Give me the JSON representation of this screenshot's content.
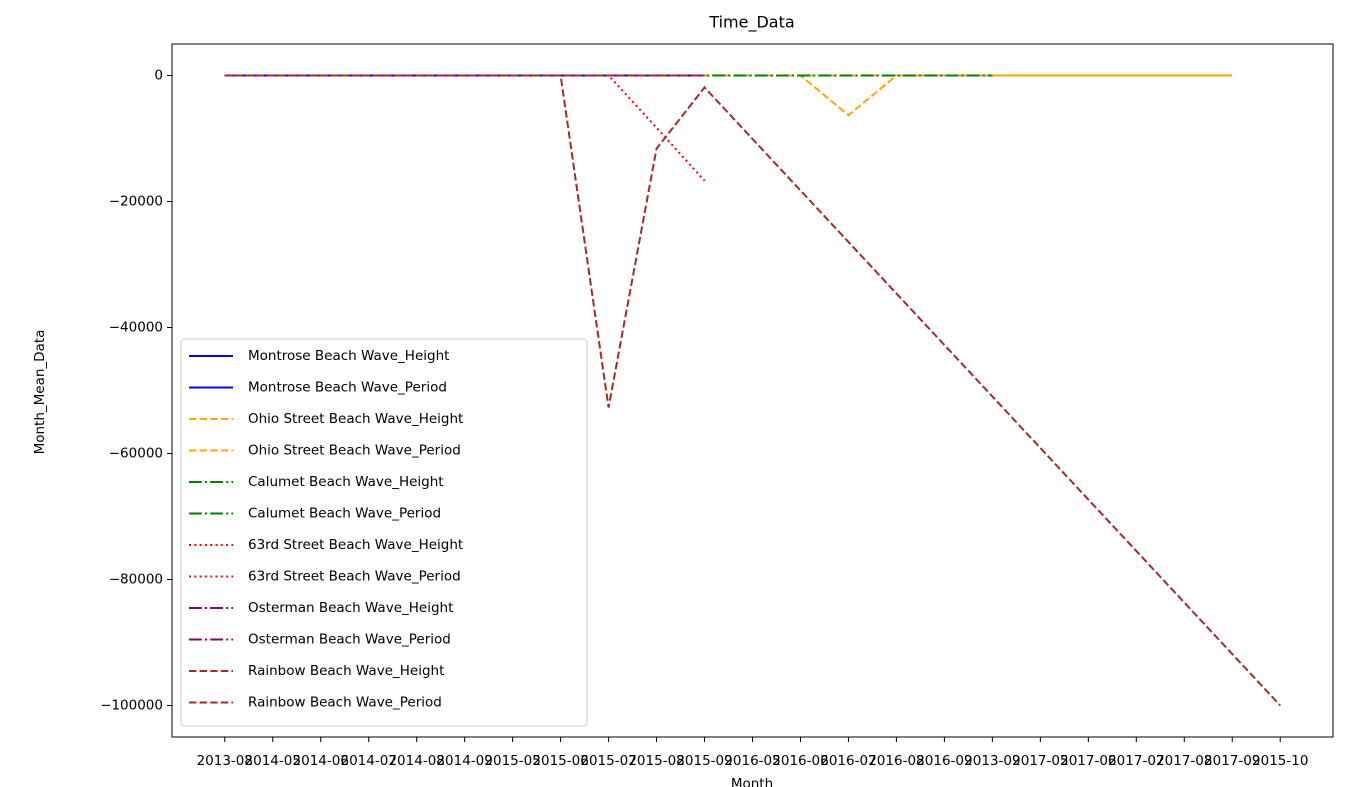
{
  "chart_data": {
    "type": "line",
    "title": "Time_Data",
    "x_label": "Month",
    "y_label": "Month_Mean_Data",
    "categories": [
      "2013-08",
      "2014-05",
      "2014-06",
      "2014-07",
      "2014-08",
      "2014-09",
      "2015-05",
      "2015-06",
      "2015-07",
      "2015-08",
      "2015-09",
      "2016-05",
      "2016-06",
      "2016-07",
      "2016-08",
      "2016-09",
      "2013-09",
      "2017-05",
      "2017-06",
      "2017-07",
      "2017-08",
      "2017-09",
      "2015-10"
    ],
    "ylim": [
      -105000,
      5000
    ],
    "yticks": [
      0,
      {
        "value": -20000,
        "label": "−20000"
      },
      {
        "value": -40000,
        "label": "−40000"
      },
      {
        "value": -60000,
        "label": "−60000"
      },
      {
        "value": -80000,
        "label": "−80000"
      },
      {
        "value": -100000,
        "label": "−100000"
      }
    ],
    "grid": false,
    "legend": "lower left",
    "series": [
      {
        "name": "Montrose Beach Wave_Height",
        "color": "#0000ff",
        "dash": "solid",
        "x": [
          "2013-08",
          "2014-05",
          "2014-06",
          "2014-07",
          "2014-08",
          "2014-09",
          "2015-05",
          "2015-06",
          "2015-07",
          "2015-08",
          "2015-09"
        ],
        "values": [
          1,
          1,
          1,
          1,
          1,
          1,
          1,
          1,
          1,
          1,
          1
        ]
      },
      {
        "name": "Montrose Beach Wave_Period",
        "color": "#0000ff",
        "dash": "solid",
        "x": [
          "2013-08",
          "2014-05",
          "2014-06",
          "2014-07",
          "2014-08",
          "2014-09",
          "2015-05",
          "2015-06",
          "2015-07",
          "2015-08",
          "2015-09"
        ],
        "values": [
          5,
          5,
          5,
          5,
          5,
          5,
          5,
          5,
          5,
          5,
          5
        ]
      },
      {
        "name": "Ohio Street Beach Wave_Height",
        "color": "#ffa500",
        "dash": "dashed",
        "x": [
          "2013-08",
          "2014-05",
          "2014-06",
          "2014-07",
          "2014-08",
          "2014-09",
          "2015-05",
          "2015-06",
          "2015-07",
          "2015-08",
          "2015-09",
          "2016-05",
          "2016-06",
          "2016-07",
          "2016-08",
          "2016-09",
          "2013-09",
          "2017-05",
          "2017-06",
          "2017-07",
          "2017-08",
          "2017-09"
        ],
        "values": [
          1,
          1,
          1,
          1,
          1,
          1,
          1,
          1,
          1,
          1,
          1,
          1,
          1,
          -6300,
          1,
          1,
          1,
          1,
          1,
          1,
          1,
          1
        ]
      },
      {
        "name": "Ohio Street Beach Wave_Period",
        "color": "#ffa500",
        "dash": "dashed",
        "x": [
          "2013-08",
          "2014-05",
          "2014-06",
          "2014-07",
          "2014-08",
          "2014-09",
          "2015-05",
          "2015-06",
          "2015-07",
          "2015-08",
          "2015-09",
          "2016-05",
          "2016-06",
          "2016-07",
          "2016-08",
          "2016-09",
          "2013-09",
          "2017-05",
          "2017-06",
          "2017-07",
          "2017-08",
          "2017-09"
        ],
        "values": [
          5,
          5,
          5,
          5,
          5,
          5,
          5,
          5,
          5,
          5,
          5,
          5,
          5,
          5,
          5,
          5,
          5,
          5,
          5,
          5,
          5,
          5
        ]
      },
      {
        "name": "Calumet Beach Wave_Height",
        "color": "#008000",
        "dash": "dashdot",
        "x": [
          "2013-08",
          "2014-05",
          "2014-06",
          "2014-07",
          "2014-08",
          "2014-09",
          "2015-05",
          "2015-06",
          "2015-07",
          "2015-08",
          "2015-09",
          "2016-05",
          "2016-06",
          "2016-07",
          "2016-08",
          "2016-09",
          "2013-09"
        ],
        "values": [
          1,
          1,
          1,
          1,
          1,
          1,
          1,
          1,
          1,
          1,
          1,
          1,
          1,
          1,
          1,
          1,
          1
        ]
      },
      {
        "name": "Calumet Beach Wave_Period",
        "color": "#008000",
        "dash": "dashdot",
        "x": [
          "2013-08",
          "2014-05",
          "2014-06",
          "2014-07",
          "2014-08",
          "2014-09",
          "2015-05",
          "2015-06",
          "2015-07",
          "2015-08",
          "2015-09",
          "2016-05",
          "2016-06",
          "2016-07",
          "2016-08",
          "2016-09",
          "2013-09"
        ],
        "values": [
          5,
          5,
          5,
          5,
          5,
          5,
          5,
          5,
          5,
          5,
          5,
          5,
          5,
          5,
          5,
          5,
          5
        ]
      },
      {
        "name": "63rd Street Beach Wave_Height",
        "color": "#ff0000",
        "dash": "dotted",
        "x": [
          "2013-08",
          "2014-05",
          "2014-06",
          "2014-07",
          "2014-08",
          "2014-09",
          "2015-05",
          "2015-06",
          "2015-07",
          "2015-08",
          "2015-09"
        ],
        "values": [
          1,
          1,
          1,
          1,
          1,
          1,
          1,
          1,
          1,
          -8300,
          -16700
        ]
      },
      {
        "name": "63rd Street Beach Wave_Period",
        "color": "#ff0000",
        "dash": "dotted",
        "x": [
          "2013-08",
          "2014-05",
          "2014-06",
          "2014-07",
          "2014-08",
          "2014-09",
          "2015-05",
          "2015-06",
          "2015-07",
          "2015-08",
          "2015-09"
        ],
        "values": [
          5,
          5,
          5,
          5,
          5,
          5,
          5,
          5,
          5,
          5,
          5
        ]
      },
      {
        "name": "Osterman Beach Wave_Height",
        "color": "#800080",
        "dash": "dashdot",
        "x": [
          "2013-08",
          "2014-05",
          "2014-06",
          "2014-07",
          "2014-08",
          "2014-09",
          "2015-05",
          "2015-06",
          "2015-07",
          "2015-08",
          "2015-09"
        ],
        "values": [
          1,
          1,
          1,
          1,
          1,
          1,
          1,
          1,
          1,
          1,
          1
        ]
      },
      {
        "name": "Osterman Beach Wave_Period",
        "color": "#800080",
        "dash": "dashdot",
        "x": [
          "2013-08",
          "2014-05",
          "2014-06",
          "2014-07",
          "2014-08",
          "2014-09",
          "2015-05",
          "2015-06",
          "2015-07",
          "2015-08",
          "2015-09"
        ],
        "values": [
          5,
          5,
          5,
          5,
          5,
          5,
          5,
          5,
          5,
          5,
          5
        ]
      },
      {
        "name": "Rainbow Beach Wave_Height",
        "color": "#a52a2a",
        "dash": "dashed",
        "x": [
          "2013-08",
          "2014-05",
          "2014-06",
          "2014-07",
          "2014-08",
          "2014-09",
          "2015-05",
          "2015-06",
          "2015-07",
          "2015-08",
          "2015-09",
          "2015-10"
        ],
        "values": [
          1,
          1,
          1,
          1,
          1,
          1,
          1,
          1,
          -52700,
          -11600,
          -1900,
          -100000
        ]
      },
      {
        "name": "Rainbow Beach Wave_Period",
        "color": "#a52a2a",
        "dash": "dashed",
        "x": [
          "2013-08",
          "2014-05",
          "2014-06",
          "2014-07",
          "2014-08",
          "2014-09",
          "2015-05",
          "2015-06",
          "2015-07",
          "2015-08",
          "2015-09"
        ],
        "values": [
          5,
          5,
          5,
          5,
          5,
          5,
          5,
          5,
          5,
          5,
          5
        ]
      }
    ]
  }
}
